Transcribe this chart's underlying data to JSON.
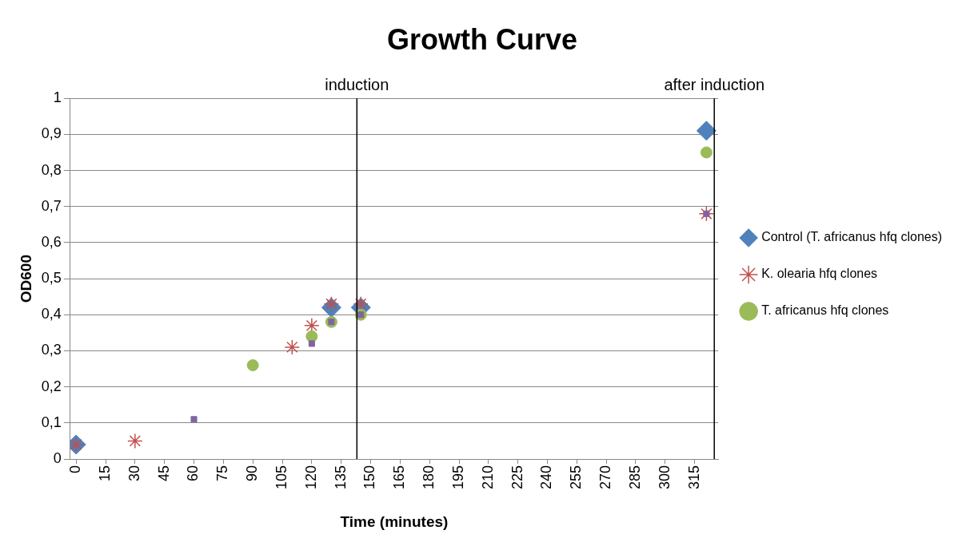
{
  "chart_data": {
    "type": "scatter",
    "title": "Growth Curve",
    "xlabel": "Time (minutes)",
    "ylabel": "OD600",
    "xlim": [
      -3,
      327
    ],
    "xticks": [
      0,
      15,
      30,
      45,
      60,
      75,
      90,
      105,
      120,
      135,
      150,
      165,
      180,
      195,
      210,
      225,
      240,
      255,
      270,
      285,
      300,
      315
    ],
    "ylim": [
      0,
      1
    ],
    "yticks": [
      {
        "value": 0,
        "label": "0"
      },
      {
        "value": 0.1,
        "label": "0,1"
      },
      {
        "value": 0.2,
        "label": "0,2"
      },
      {
        "value": 0.3,
        "label": "0,3"
      },
      {
        "value": 0.4,
        "label": "0,4"
      },
      {
        "value": 0.5,
        "label": "0,5"
      },
      {
        "value": 0.6,
        "label": "0,6"
      },
      {
        "value": 0.7,
        "label": "0,7"
      },
      {
        "value": 0.8,
        "label": "0,8"
      },
      {
        "value": 0.9,
        "label": "0,9"
      },
      {
        "value": 1,
        "label": "1"
      }
    ],
    "grid": "y",
    "legend": "right",
    "series": [
      {
        "name": "Control (T. africanus hfq clones)",
        "color": "#4f81bd",
        "marker": "diamond",
        "x": [
          0,
          130,
          145,
          321
        ],
        "values": [
          0.04,
          0.42,
          0.42,
          0.91
        ]
      },
      {
        "name": "K. olearia hfq clones",
        "color": "#c0504d",
        "marker": "cross",
        "x": [
          0,
          30,
          110,
          120,
          130,
          145,
          321
        ],
        "values": [
          0.04,
          0.05,
          0.31,
          0.37,
          0.43,
          0.43,
          0.68
        ]
      },
      {
        "name": "T. africanus hfq clones",
        "color": "#9bbb59",
        "marker": "circle",
        "x": [
          90,
          120,
          130,
          145,
          321
        ],
        "values": [
          0.26,
          0.34,
          0.38,
          0.4,
          0.85
        ]
      },
      {
        "color": "#8064a2",
        "marker": "square",
        "x": [
          60,
          120,
          130,
          145,
          321
        ],
        "values": [
          0.11,
          0.32,
          0.38,
          0.4,
          0.68
        ]
      }
    ],
    "ref_lines": [
      {
        "axis": "x",
        "value": 143,
        "label": "induction",
        "color": "#000000"
      },
      {
        "axis": "x",
        "value": 325,
        "label": "after induction",
        "color": "#000000"
      }
    ]
  }
}
